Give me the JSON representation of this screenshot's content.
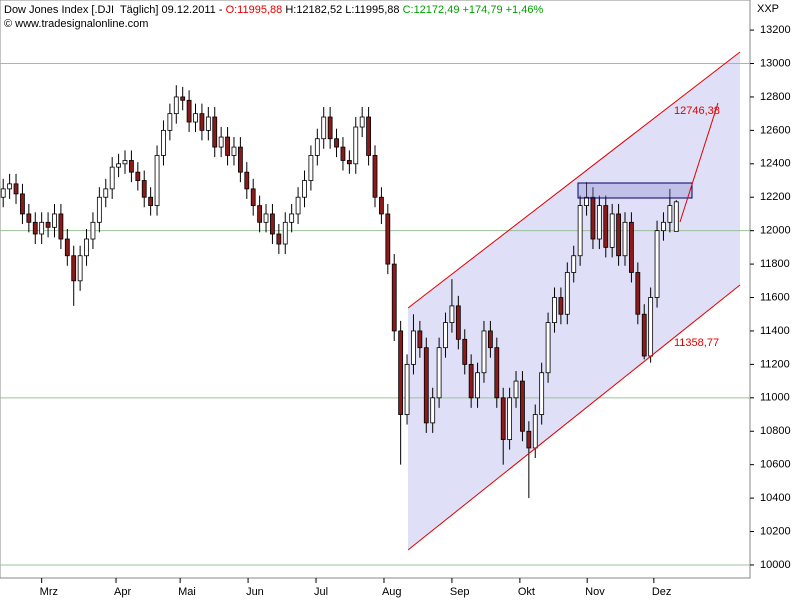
{
  "header": {
    "instrument": "Dow Jones Index [.DJI  Täglich] 09.12.2011 -",
    "open": "O:11995,88",
    "high_low": "H:12182,52 L:11995,88",
    "close": "C:12172,49 +174,79 +1,46%",
    "source": "© www.tradesignalonline.com"
  },
  "chart_data": {
    "type": "candlestick",
    "axis_label": "XXP",
    "xlim": [
      -0.5,
      116.5
    ],
    "xticks": [
      {
        "value": 6,
        "label": "Mrz"
      },
      {
        "value": 17.6,
        "label": "Apr"
      },
      {
        "value": 27.6,
        "label": "Mai"
      },
      {
        "value": 38.2,
        "label": "Jun"
      },
      {
        "value": 48.8,
        "label": "Jul"
      },
      {
        "value": 59.4,
        "label": "Aug"
      },
      {
        "value": 70,
        "label": "Sep"
      },
      {
        "value": 80.6,
        "label": "Okt"
      },
      {
        "value": 91.1,
        "label": "Nov"
      },
      {
        "value": 101.5,
        "label": "Dez"
      }
    ],
    "ylim": [
      9922,
      13380
    ],
    "yticks": [
      10000,
      10200,
      10400,
      10600,
      10800,
      11000,
      11200,
      11400,
      11600,
      11800,
      12000,
      12200,
      12400,
      12600,
      12800,
      13000,
      13200
    ],
    "grid_values": [
      10000,
      11000,
      12000,
      13000
    ],
    "up_color": "#ffffff",
    "down_color": "#8b1a1a",
    "open": [
      12200,
      12250,
      12280,
      12220,
      12100,
      12050,
      11980,
      12050,
      12020,
      12100,
      11950,
      11850,
      11700,
      11850,
      11950,
      12050,
      12200,
      12250,
      12380,
      12400,
      12420,
      12350,
      12300,
      12200,
      12150,
      12450,
      12600,
      12700,
      12800,
      12780,
      12650,
      12700,
      12600,
      12680,
      12500,
      12560,
      12450,
      12500,
      12350,
      12250,
      12150,
      12050,
      12100,
      11980,
      11920,
      12050,
      12100,
      12200,
      12300,
      12450,
      12550,
      12680,
      12550,
      12500,
      12420,
      12400,
      12620,
      12680,
      12450,
      12200,
      12100,
      11800,
      11400,
      10900,
      11200,
      11400,
      11300,
      10850,
      11000,
      11300,
      11450,
      11550,
      11350,
      11200,
      11000,
      11150,
      11400,
      11300,
      11000,
      10750,
      11000,
      11100,
      10800,
      10700,
      10900,
      11150,
      11450,
      11600,
      11500,
      11750,
      11850,
      12150,
      12200,
      11950,
      12150,
      11900,
      12100,
      11850,
      12050,
      11750,
      11500,
      11250,
      11600,
      12000,
      12050,
      11995.88
    ],
    "high": [
      12310,
      12340,
      12340,
      12280,
      12160,
      12110,
      12110,
      12110,
      12160,
      12160,
      12010,
      11910,
      11910,
      12010,
      12110,
      12260,
      12310,
      12440,
      12460,
      12480,
      12480,
      12410,
      12360,
      12260,
      12510,
      12660,
      12760,
      12870,
      12860,
      12840,
      12760,
      12760,
      12740,
      12740,
      12620,
      12620,
      12560,
      12560,
      12410,
      12310,
      12210,
      12160,
      12160,
      12040,
      12110,
      12160,
      12260,
      12360,
      12510,
      12610,
      12740,
      12740,
      12610,
      12560,
      12480,
      12680,
      12740,
      12740,
      12510,
      12260,
      12160,
      11860,
      11460,
      11260,
      11500,
      11460,
      11360,
      11060,
      11360,
      11510,
      11710,
      11610,
      11410,
      11260,
      11210,
      11460,
      11460,
      11360,
      11060,
      11060,
      11160,
      11160,
      10860,
      10960,
      11210,
      11510,
      11660,
      11660,
      11810,
      11910,
      12210,
      12290,
      12260,
      12210,
      12210,
      12160,
      12160,
      12110,
      12110,
      11810,
      11560,
      11660,
      12060,
      12110,
      12250,
      12182.52
    ],
    "low": [
      12140,
      12190,
      12160,
      12040,
      11990,
      11920,
      11920,
      11960,
      11960,
      11890,
      11790,
      11550,
      11640,
      11790,
      11890,
      11990,
      12140,
      12190,
      12320,
      12340,
      12290,
      12240,
      12140,
      12090,
      12090,
      12390,
      12540,
      12640,
      12720,
      12590,
      12590,
      12540,
      12540,
      12440,
      12440,
      12390,
      12390,
      12290,
      12190,
      12090,
      11990,
      11990,
      11920,
      11860,
      11860,
      11990,
      12040,
      12140,
      12240,
      12390,
      12490,
      12490,
      12440,
      12360,
      12340,
      12340,
      12560,
      12390,
      12140,
      12040,
      11740,
      11340,
      10600,
      10840,
      11140,
      11240,
      10790,
      10790,
      10940,
      11240,
      11390,
      11290,
      11140,
      10940,
      10940,
      11090,
      11240,
      10940,
      10600,
      10690,
      10940,
      10740,
      10400,
      10640,
      10840,
      11090,
      11390,
      11440,
      11440,
      11690,
      11790,
      12090,
      11890,
      11890,
      11840,
      11840,
      11790,
      11790,
      11690,
      11440,
      11230,
      11210,
      11540,
      11940,
      11990,
      11995.88
    ],
    "close": [
      12250,
      12280,
      12220,
      12100,
      12050,
      11980,
      12050,
      12020,
      12100,
      11950,
      11850,
      11700,
      11850,
      11950,
      12050,
      12200,
      12250,
      12380,
      12400,
      12420,
      12350,
      12300,
      12200,
      12150,
      12450,
      12600,
      12700,
      12800,
      12780,
      12650,
      12700,
      12600,
      12680,
      12500,
      12560,
      12450,
      12500,
      12350,
      12250,
      12150,
      12050,
      12100,
      11980,
      11920,
      12050,
      12100,
      12200,
      12300,
      12450,
      12550,
      12680,
      12550,
      12500,
      12420,
      12400,
      12620,
      12680,
      12450,
      12200,
      12100,
      11800,
      11400,
      10900,
      11200,
      11400,
      11300,
      10850,
      11000,
      11300,
      11450,
      11550,
      11350,
      11200,
      11000,
      11150,
      11400,
      11300,
      11000,
      10750,
      11000,
      11100,
      10800,
      10700,
      10900,
      11150,
      11450,
      11600,
      11500,
      11750,
      11850,
      12150,
      12200,
      11950,
      12150,
      11900,
      12100,
      11850,
      12050,
      11750,
      11500,
      11250,
      11600,
      12000,
      12050,
      12150,
      12172.49
    ],
    "annotations": [
      {
        "value": 12746.38,
        "label": "12746,38",
        "color": "#e00000"
      },
      {
        "value": 11358.77,
        "label": "11358,77",
        "color": "#e00000"
      }
    ]
  }
}
